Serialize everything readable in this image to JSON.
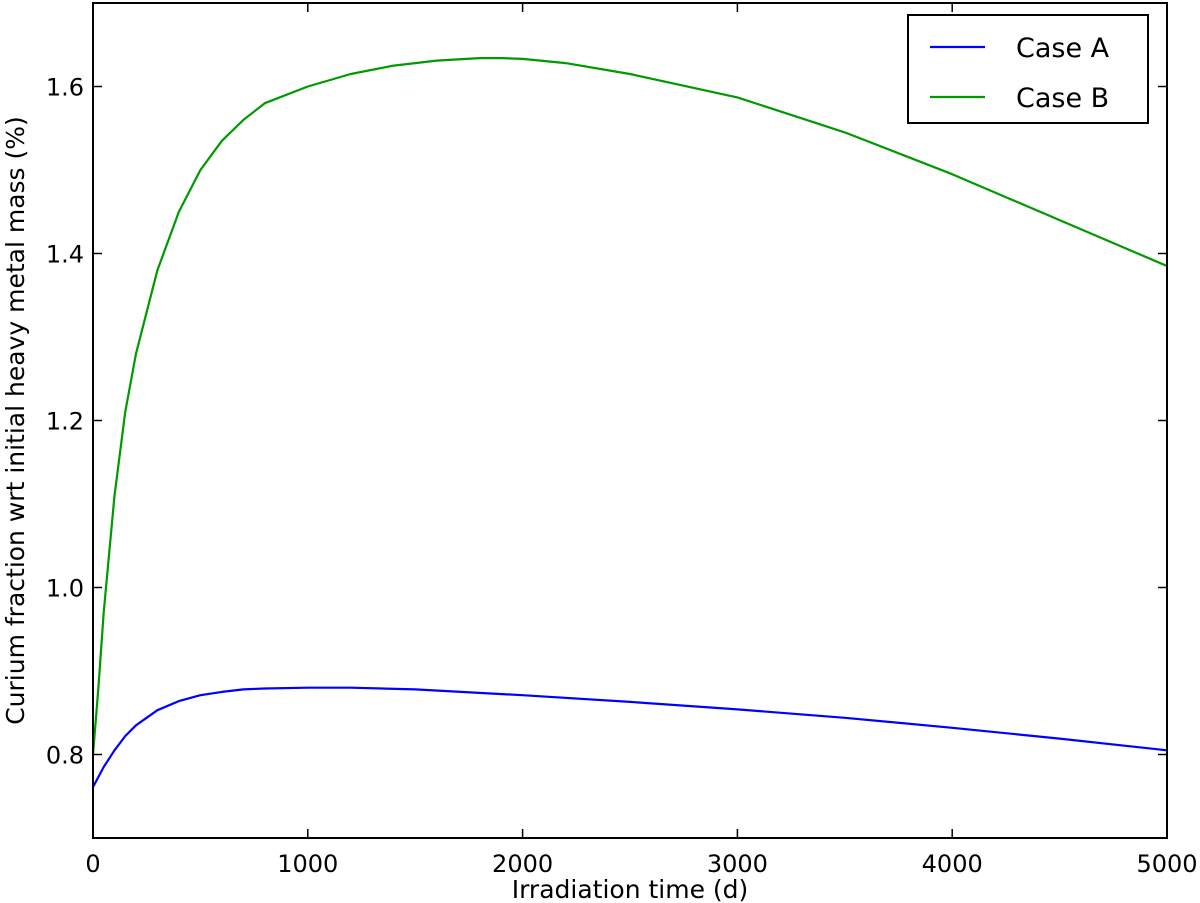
{
  "chart_data": {
    "type": "line",
    "title": "",
    "xlabel": "Irradiation time (d)",
    "ylabel": "Curium fraction wrt initial heavy metal mass (%)",
    "xlim": [
      0,
      5000
    ],
    "ylim": [
      0.7,
      1.7
    ],
    "x_ticks": [
      0,
      1000,
      2000,
      3000,
      4000,
      5000
    ],
    "x_tick_labels": [
      "0",
      "1000",
      "2000",
      "3000",
      "4000",
      "5000"
    ],
    "y_ticks": [
      0.8,
      1.0,
      1.2,
      1.4,
      1.6
    ],
    "y_tick_labels": [
      "0.8",
      "1.0",
      "1.2",
      "1.4",
      "1.6"
    ],
    "grid": false,
    "legend_position": "top-right",
    "series": [
      {
        "name": "Case A",
        "color": "#0000ff",
        "x": [
          0,
          50,
          100,
          150,
          200,
          300,
          400,
          500,
          600,
          700,
          800,
          1000,
          1200,
          1500,
          2000,
          2500,
          3000,
          3500,
          4000,
          4500,
          5000
        ],
        "y": [
          0.761,
          0.785,
          0.805,
          0.822,
          0.835,
          0.853,
          0.864,
          0.871,
          0.875,
          0.878,
          0.879,
          0.88,
          0.88,
          0.878,
          0.871,
          0.863,
          0.854,
          0.844,
          0.832,
          0.819,
          0.805
        ]
      },
      {
        "name": "Case B",
        "color": "#009900",
        "x": [
          0,
          25,
          50,
          100,
          150,
          200,
          300,
          400,
          500,
          600,
          700,
          800,
          1000,
          1200,
          1400,
          1600,
          1800,
          1900,
          2000,
          2200,
          2500,
          3000,
          3500,
          4000,
          4500,
          5000
        ],
        "y": [
          0.8,
          0.88,
          0.97,
          1.11,
          1.21,
          1.28,
          1.38,
          1.45,
          1.5,
          1.535,
          1.56,
          1.58,
          1.6,
          1.615,
          1.625,
          1.631,
          1.634,
          1.634,
          1.633,
          1.628,
          1.615,
          1.587,
          1.545,
          1.495,
          1.44,
          1.385
        ]
      }
    ]
  }
}
